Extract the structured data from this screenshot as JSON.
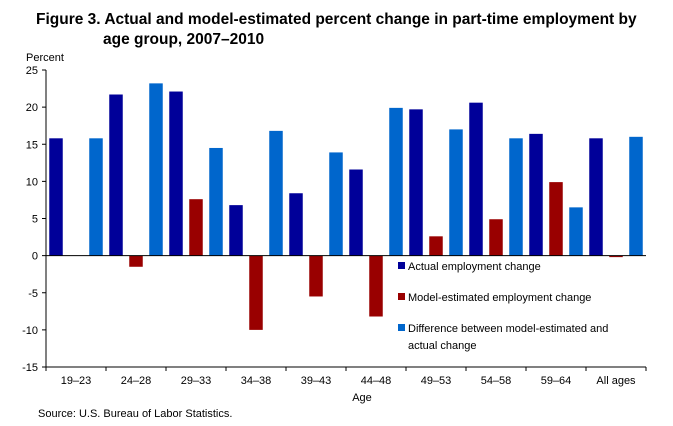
{
  "figure": {
    "title_line1": "Figure 3. Actual and model-estimated percent change in part-time employment by",
    "title_line2": "age group, 2007–2010",
    "source": "Source:  U.S. Bureau  of Labor Statistics."
  },
  "chart_data": {
    "type": "bar",
    "title": "Figure 3. Actual and model-estimated percent change in part-time employment by age group, 2007–2010",
    "ylabel": "Percent",
    "xlabel": "Age",
    "ylim": [
      -15,
      25
    ],
    "yticks": [
      -15,
      -10,
      -5,
      0,
      5,
      10,
      15,
      20,
      25
    ],
    "categories": [
      "19–23",
      "24–28",
      "29–33",
      "34–38",
      "39–43",
      "44–48",
      "49–53",
      "54–58",
      "59–64",
      "All ages"
    ],
    "series": [
      {
        "name": "Actual employment change",
        "color": "#000099",
        "values": [
          15.8,
          21.7,
          22.1,
          6.8,
          8.4,
          11.6,
          19.7,
          20.6,
          16.4,
          15.8
        ]
      },
      {
        "name": "Model-estimated employment change",
        "color": "#990000",
        "values": [
          0,
          -1.5,
          7.6,
          -10.0,
          -5.5,
          -8.2,
          2.6,
          4.9,
          9.9,
          -0.2
        ]
      },
      {
        "name": "Difference between model-estimated and actual change",
        "name_lines": [
          "Difference between model-estimated and",
          "actual change"
        ],
        "color": "#0066cc",
        "values": [
          15.8,
          23.2,
          14.5,
          16.8,
          13.9,
          19.9,
          17.0,
          15.8,
          6.5,
          16.0
        ]
      }
    ],
    "legend_position": "lower-right",
    "grid": false
  }
}
